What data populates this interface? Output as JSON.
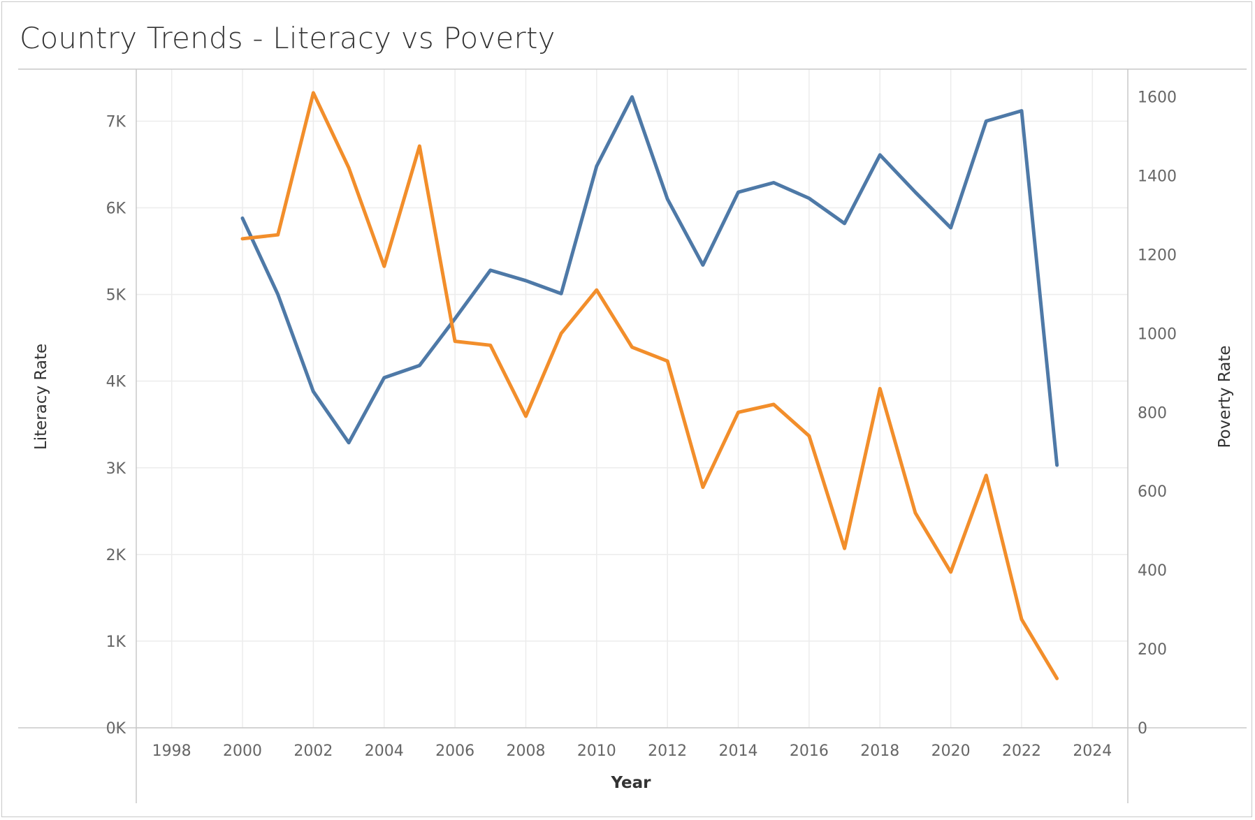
{
  "chart_data": {
    "type": "line",
    "title": "Country Trends - Literacy vs Poverty",
    "xlabel": "Year",
    "ylabel": "Literacy Rate",
    "y2label": "Poverty Rate",
    "xlim": [
      1997,
      2025
    ],
    "ylim": [
      0,
      7600
    ],
    "y2lim": [
      0,
      1670
    ],
    "x_ticks": [
      1998,
      2000,
      2002,
      2004,
      2006,
      2008,
      2010,
      2012,
      2014,
      2016,
      2018,
      2020,
      2022,
      2024
    ],
    "y_ticks": [
      0,
      1000,
      2000,
      3000,
      4000,
      5000,
      6000,
      7000
    ],
    "y_tick_labels": [
      "0K",
      "1K",
      "2K",
      "3K",
      "4K",
      "5K",
      "6K",
      "7K"
    ],
    "y2_ticks": [
      0,
      200,
      400,
      600,
      800,
      1000,
      1200,
      1400,
      1600
    ],
    "y2_tick_labels": [
      "0",
      "200",
      "400",
      "600",
      "800",
      "1000",
      "1200",
      "1400",
      "1600"
    ],
    "grid": true,
    "x": [
      2000,
      2001,
      2002,
      2003,
      2004,
      2005,
      2006,
      2007,
      2008,
      2009,
      2010,
      2011,
      2012,
      2013,
      2014,
      2015,
      2016,
      2017,
      2018,
      2019,
      2020,
      2021,
      2022,
      2023
    ],
    "series": [
      {
        "axis": "left",
        "color": "#4e79a7",
        "values": [
          5880,
          5000,
          3880,
          3290,
          4040,
          4180,
          4720,
          5280,
          5160,
          5010,
          6480,
          7280,
          6100,
          5340,
          6180,
          6290,
          6110,
          5820,
          6610,
          6180,
          5770,
          7000,
          7120,
          3030
        ]
      },
      {
        "axis": "right",
        "color": "#f28e2b",
        "values": [
          1240,
          1250,
          1610,
          1420,
          1170,
          1475,
          980,
          970,
          790,
          1000,
          1110,
          965,
          930,
          610,
          800,
          820,
          740,
          455,
          860,
          545,
          395,
          640,
          275,
          125
        ]
      }
    ]
  }
}
